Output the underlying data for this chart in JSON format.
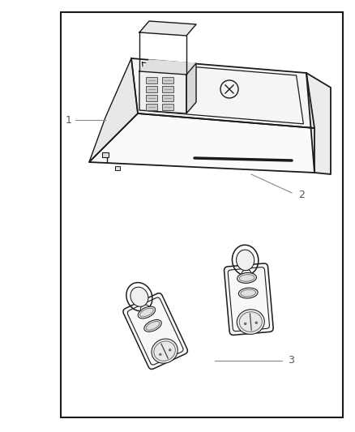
{
  "background_color": "#ffffff",
  "border_color": "#1a1a1a",
  "line_color": "#1a1a1a",
  "light_line_color": "#888888",
  "label_color": "#555555",
  "label_1": "1",
  "label_2": "2",
  "label_3": "3",
  "fig_width": 4.38,
  "fig_height": 5.33,
  "dpi": 100
}
